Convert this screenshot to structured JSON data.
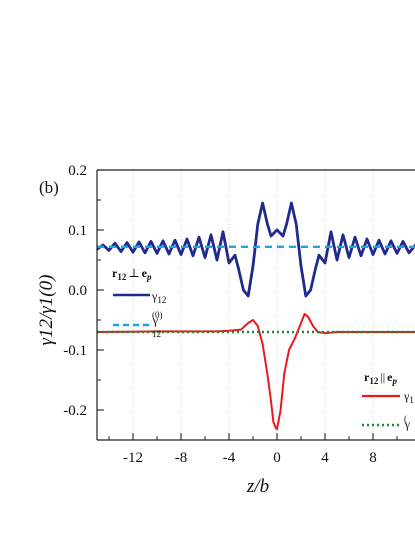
{
  "chart_data": {
    "type": "line",
    "panel_label": "(b)",
    "xlabel": "z/b",
    "ylabel": "γ12/γ1(0)",
    "xlim": [
      -15,
      11.5
    ],
    "ylim": [
      -0.25,
      0.2
    ],
    "x_ticks": [
      -12,
      -8,
      -4,
      0,
      4,
      8
    ],
    "x_tick_labels": [
      "-12",
      "-8",
      "-4",
      "0",
      "4",
      "8"
    ],
    "y_ticks": [
      0.2,
      0.1,
      0.0,
      -0.1,
      -0.2
    ],
    "y_tick_labels": [
      "0.2",
      "0.1",
      "0.0",
      "-0.1",
      "-0.2"
    ],
    "vertical_grid": true,
    "legend_groups": [
      {
        "title": "r12 ⊥ ep",
        "title_parts": {
          "r": "r",
          "r_sub": "12",
          "sym": "⊥",
          "e": "e",
          "e_sub": "p"
        },
        "entries": [
          {
            "label": "γ",
            "sub": "12",
            "sup": "",
            "series_index": 0
          },
          {
            "label": "γ",
            "sub": "12",
            "sup": "(0)",
            "series_index": 1
          }
        ]
      },
      {
        "title": "r12 ∥ ep",
        "title_parts": {
          "r": "r",
          "r_sub": "12",
          "sym": "||",
          "e": "e",
          "e_sub": "p"
        },
        "entries": [
          {
            "label": "γ",
            "sub": "1",
            "sup": "",
            "series_index": 2
          },
          {
            "label": "γ",
            "sub": "1",
            "sup": "(",
            "series_index": 3
          }
        ]
      }
    ],
    "series": [
      {
        "color": "#1f2a8c",
        "style": "solid",
        "x": [
          -15,
          -14.5,
          -14,
          -13.5,
          -13,
          -12.5,
          -12,
          -11.5,
          -11,
          -10.5,
          -10,
          -9.5,
          -9,
          -8.5,
          -8,
          -7.5,
          -7,
          -6.5,
          -6,
          -5.5,
          -5,
          -4.5,
          -4,
          -3.5,
          -3.2,
          -2.8,
          -2.4,
          -2,
          -1.6,
          -1.2,
          -0.8,
          -0.5,
          -0.25,
          0,
          0.25,
          0.5,
          0.8,
          1.2,
          1.6,
          2,
          2.4,
          2.8,
          3.2,
          3.5,
          4,
          4.5,
          5,
          5.5,
          6,
          6.5,
          7,
          7.5,
          8,
          8.5,
          9,
          9.5,
          10,
          10.5,
          11,
          11.5
        ],
        "y": [
          0.068,
          0.075,
          0.066,
          0.078,
          0.064,
          0.079,
          0.063,
          0.08,
          0.062,
          0.081,
          0.061,
          0.082,
          0.06,
          0.083,
          0.059,
          0.085,
          0.057,
          0.088,
          0.054,
          0.092,
          0.05,
          0.097,
          0.045,
          0.058,
          0.035,
          0.0,
          -0.01,
          0.04,
          0.11,
          0.145,
          0.11,
          0.09,
          0.095,
          0.1,
          0.095,
          0.09,
          0.11,
          0.145,
          0.11,
          0.04,
          -0.01,
          0.0,
          0.035,
          0.058,
          0.045,
          0.097,
          0.05,
          0.092,
          0.054,
          0.088,
          0.057,
          0.085,
          0.059,
          0.083,
          0.06,
          0.082,
          0.061,
          0.081,
          0.062,
          0.074
        ]
      },
      {
        "color": "#1aa6e0",
        "style": "dashed",
        "x": [
          -15,
          11.5
        ],
        "y": [
          0.072,
          0.072
        ]
      },
      {
        "color": "#e8191f",
        "style": "solid",
        "x": [
          -15,
          -10,
          -5,
          -4,
          -3,
          -2.4,
          -2,
          -1.6,
          -1.2,
          -0.8,
          -0.5,
          -0.3,
          -0.1,
          0,
          0.3,
          0.6,
          1,
          1.5,
          2,
          2.3,
          2.6,
          3,
          3.4,
          4,
          5,
          8,
          11.5
        ],
        "y": [
          -0.07,
          -0.069,
          -0.069,
          -0.068,
          -0.066,
          -0.055,
          -0.05,
          -0.06,
          -0.09,
          -0.14,
          -0.185,
          -0.22,
          -0.23,
          -0.232,
          -0.2,
          -0.14,
          -0.1,
          -0.08,
          -0.055,
          -0.04,
          -0.045,
          -0.06,
          -0.07,
          -0.072,
          -0.07,
          -0.07,
          -0.07
        ]
      },
      {
        "color": "#1c8a2e",
        "style": "dotted",
        "x": [
          -15,
          11.5
        ],
        "y": [
          -0.07,
          -0.07
        ]
      }
    ]
  }
}
